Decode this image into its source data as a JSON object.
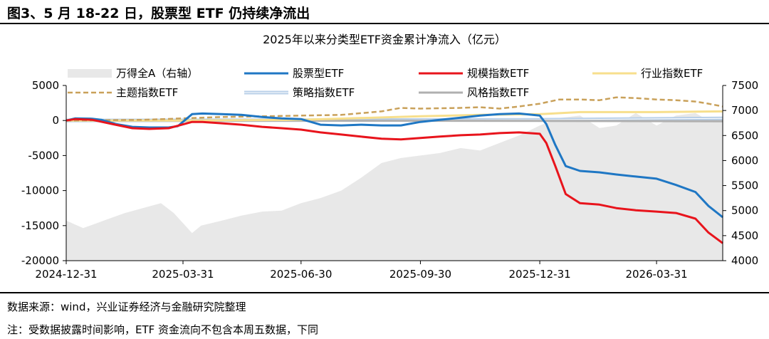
{
  "figure_title": "图3、5 月 18-22 日，股票型 ETF 仍持续净流出",
  "footer": {
    "source": "数据来源：wind，兴业证券经济与金融研究院整理",
    "note": "注：受数据披露时间影响，ETF 资金流向不包含本周五数据，下同"
  },
  "chart_data": {
    "type": "line",
    "title": "2025年以来分类型ETF资金累计净流入（亿元）",
    "x_range": [
      "2024-12-31",
      "2026-05-21"
    ],
    "x_ticks": [
      "2024-12-31",
      "2025-03-31",
      "2025-06-30",
      "2025-09-30",
      "2025-12-31",
      "2026-03-31"
    ],
    "y_left": {
      "range": [
        -20000,
        5000
      ],
      "ticks": [
        -20000,
        -15000,
        -10000,
        -5000,
        0,
        5000
      ],
      "tick_labels": [
        "-20000",
        "-15000",
        "-10000",
        "-5000",
        "0",
        "5000"
      ]
    },
    "y_right": {
      "range": [
        4000,
        7500
      ],
      "ticks": [
        4000,
        4500,
        5000,
        5500,
        6000,
        6500,
        7000,
        7500
      ],
      "tick_labels": [
        "4000",
        "4500",
        "5000",
        "5500",
        "6000",
        "6500",
        "7000",
        "7500"
      ]
    },
    "legend_placement": "top, three columns",
    "legend_order": [
      "万得全A（右轴）",
      "股票型ETF",
      "规模指数ETF",
      "行业指数ETF",
      "主题指数ETF",
      "策略指数ETF",
      "风格指数ETF"
    ],
    "series": [
      {
        "name": "万得全A（右轴）",
        "axis": "right",
        "kind": "area",
        "color": "#e8e8e8",
        "points": [
          [
            "2024-12-31",
            4800
          ],
          [
            "2025-01-13",
            4650
          ],
          [
            "2025-01-31",
            4820
          ],
          [
            "2025-02-14",
            4950
          ],
          [
            "2025-02-28",
            5050
          ],
          [
            "2025-03-14",
            5150
          ],
          [
            "2025-03-24",
            4950
          ],
          [
            "2025-04-07",
            4550
          ],
          [
            "2025-04-14",
            4700
          ],
          [
            "2025-04-30",
            4800
          ],
          [
            "2025-05-15",
            4900
          ],
          [
            "2025-05-31",
            4980
          ],
          [
            "2025-06-15",
            5000
          ],
          [
            "2025-06-30",
            5150
          ],
          [
            "2025-07-15",
            5250
          ],
          [
            "2025-07-31",
            5400
          ],
          [
            "2025-08-15",
            5650
          ],
          [
            "2025-08-31",
            5950
          ],
          [
            "2025-09-15",
            6050
          ],
          [
            "2025-09-30",
            6100
          ],
          [
            "2025-10-15",
            6150
          ],
          [
            "2025-10-31",
            6250
          ],
          [
            "2025-11-15",
            6200
          ],
          [
            "2025-11-30",
            6350
          ],
          [
            "2025-12-15",
            6500
          ],
          [
            "2025-12-31",
            6700
          ],
          [
            "2026-01-15",
            6850
          ],
          [
            "2026-01-31",
            6900
          ],
          [
            "2026-02-15",
            6650
          ],
          [
            "2026-02-28",
            6700
          ],
          [
            "2026-03-15",
            6950
          ],
          [
            "2026-03-31",
            6700
          ],
          [
            "2026-04-15",
            6900
          ],
          [
            "2026-04-30",
            6950
          ],
          [
            "2026-05-10",
            6800
          ],
          [
            "2026-05-21",
            6850
          ]
        ]
      },
      {
        "name": "股票型ETF",
        "axis": "left",
        "kind": "line",
        "color": "#1f77c4",
        "width": 3,
        "points": [
          [
            "2024-12-31",
            0
          ],
          [
            "2025-01-07",
            300
          ],
          [
            "2025-01-20",
            250
          ],
          [
            "2025-01-27",
            100
          ],
          [
            "2025-02-07",
            -500
          ],
          [
            "2025-02-20",
            -900
          ],
          [
            "2025-03-05",
            -1000
          ],
          [
            "2025-03-20",
            -1000
          ],
          [
            "2025-03-27",
            -800
          ],
          [
            "2025-04-07",
            900
          ],
          [
            "2025-04-15",
            1000
          ],
          [
            "2025-04-30",
            900
          ],
          [
            "2025-05-15",
            800
          ],
          [
            "2025-05-31",
            500
          ],
          [
            "2025-06-15",
            300
          ],
          [
            "2025-06-30",
            200
          ],
          [
            "2025-07-15",
            -600
          ],
          [
            "2025-07-31",
            -700
          ],
          [
            "2025-08-15",
            -600
          ],
          [
            "2025-08-31",
            -700
          ],
          [
            "2025-09-15",
            -700
          ],
          [
            "2025-09-30",
            -200
          ],
          [
            "2025-10-15",
            100
          ],
          [
            "2025-10-31",
            400
          ],
          [
            "2025-11-15",
            700
          ],
          [
            "2025-11-30",
            900
          ],
          [
            "2025-12-15",
            1000
          ],
          [
            "2025-12-31",
            700
          ],
          [
            "2026-01-05",
            -500
          ],
          [
            "2026-01-12",
            -3500
          ],
          [
            "2026-01-20",
            -6500
          ],
          [
            "2026-01-31",
            -7200
          ],
          [
            "2026-02-15",
            -7400
          ],
          [
            "2026-02-28",
            -7700
          ],
          [
            "2026-03-15",
            -8000
          ],
          [
            "2026-03-31",
            -8300
          ],
          [
            "2026-04-15",
            -9200
          ],
          [
            "2026-04-30",
            -10200
          ],
          [
            "2026-05-10",
            -12200
          ],
          [
            "2026-05-21",
            -13800
          ]
        ]
      },
      {
        "name": "规模指数ETF",
        "axis": "left",
        "kind": "line",
        "color": "#e8141c",
        "width": 3,
        "points": [
          [
            "2024-12-31",
            0
          ],
          [
            "2025-01-07",
            200
          ],
          [
            "2025-01-20",
            100
          ],
          [
            "2025-02-07",
            -600
          ],
          [
            "2025-02-20",
            -1100
          ],
          [
            "2025-03-05",
            -1200
          ],
          [
            "2025-03-20",
            -1100
          ],
          [
            "2025-04-07",
            -200
          ],
          [
            "2025-04-15",
            -200
          ],
          [
            "2025-04-30",
            -400
          ],
          [
            "2025-05-15",
            -600
          ],
          [
            "2025-05-31",
            -900
          ],
          [
            "2025-06-15",
            -1100
          ],
          [
            "2025-06-30",
            -1300
          ],
          [
            "2025-07-15",
            -1700
          ],
          [
            "2025-07-31",
            -2000
          ],
          [
            "2025-08-15",
            -2300
          ],
          [
            "2025-08-31",
            -2600
          ],
          [
            "2025-09-15",
            -2700
          ],
          [
            "2025-09-30",
            -2500
          ],
          [
            "2025-10-15",
            -2300
          ],
          [
            "2025-10-31",
            -2100
          ],
          [
            "2025-11-15",
            -2000
          ],
          [
            "2025-11-30",
            -1800
          ],
          [
            "2025-12-15",
            -1700
          ],
          [
            "2025-12-31",
            -1900
          ],
          [
            "2026-01-05",
            -3200
          ],
          [
            "2026-01-12",
            -6500
          ],
          [
            "2026-01-20",
            -10500
          ],
          [
            "2026-01-31",
            -11800
          ],
          [
            "2026-02-15",
            -12000
          ],
          [
            "2026-02-28",
            -12500
          ],
          [
            "2026-03-15",
            -12800
          ],
          [
            "2026-03-31",
            -13000
          ],
          [
            "2026-04-15",
            -13200
          ],
          [
            "2026-04-30",
            -14000
          ],
          [
            "2026-05-10",
            -16000
          ],
          [
            "2026-05-21",
            -17500
          ]
        ]
      },
      {
        "name": "主题指数ETF",
        "axis": "left",
        "kind": "line",
        "color": "#c9a15a",
        "width": 2.5,
        "dashed": true,
        "points": [
          [
            "2024-12-31",
            0
          ],
          [
            "2025-01-31",
            50
          ],
          [
            "2025-02-28",
            100
          ],
          [
            "2025-03-31",
            300
          ],
          [
            "2025-04-30",
            500
          ],
          [
            "2025-05-31",
            600
          ],
          [
            "2025-06-30",
            700
          ],
          [
            "2025-07-31",
            800
          ],
          [
            "2025-08-31",
            1300
          ],
          [
            "2025-09-15",
            1800
          ],
          [
            "2025-09-30",
            1700
          ],
          [
            "2025-10-31",
            1800
          ],
          [
            "2025-11-15",
            1900
          ],
          [
            "2025-11-30",
            1700
          ],
          [
            "2025-12-15",
            2000
          ],
          [
            "2025-12-31",
            2400
          ],
          [
            "2026-01-15",
            3000
          ],
          [
            "2026-01-31",
            3000
          ],
          [
            "2026-02-15",
            2900
          ],
          [
            "2026-02-28",
            3300
          ],
          [
            "2026-03-15",
            3200
          ],
          [
            "2026-03-31",
            3000
          ],
          [
            "2026-04-15",
            2900
          ],
          [
            "2026-04-30",
            2700
          ],
          [
            "2026-05-10",
            2400
          ],
          [
            "2026-05-21",
            2000
          ]
        ]
      },
      {
        "name": "行业指数ETF",
        "axis": "left",
        "kind": "line",
        "color": "#f7df8c",
        "width": 3,
        "points": [
          [
            "2024-12-31",
            0
          ],
          [
            "2025-03-31",
            0
          ],
          [
            "2025-06-30",
            100
          ],
          [
            "2025-09-30",
            600
          ],
          [
            "2025-11-15",
            800
          ],
          [
            "2025-12-31",
            900
          ],
          [
            "2026-01-31",
            1200
          ],
          [
            "2026-03-31",
            1200
          ],
          [
            "2026-05-21",
            1300
          ]
        ]
      },
      {
        "name": "策略指数ETF",
        "axis": "left",
        "kind": "line",
        "color": "#b8cfe8",
        "width": 3,
        "double": true,
        "points": [
          [
            "2024-12-31",
            0
          ],
          [
            "2025-12-31",
            100
          ],
          [
            "2026-05-21",
            300
          ]
        ]
      },
      {
        "name": "风格指数ETF",
        "axis": "left",
        "kind": "line",
        "color": "#b0b0b0",
        "width": 3,
        "points": [
          [
            "2024-12-31",
            0
          ],
          [
            "2025-12-31",
            -50
          ],
          [
            "2026-05-21",
            -100
          ]
        ]
      }
    ]
  }
}
